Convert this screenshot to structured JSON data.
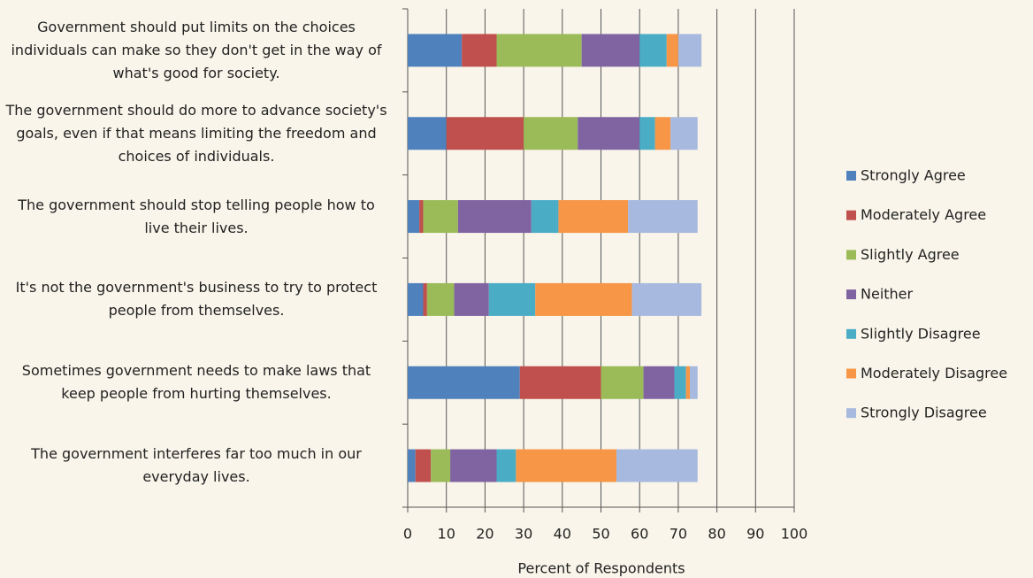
{
  "chart_data": {
    "type": "stacked_bar_horizontal",
    "x_label": "Percent of Respondents",
    "categories": [
      "Government should put limits on the choices individuals can make so they don't get in the way of what's good for society.",
      "The government should do more to advance society's goals, even if that means limiting the freedom and choices of individuals.",
      "The government should stop telling people how to live their lives.",
      "It's not the government's business to try to protect people from themselves.",
      "Sometimes government needs to make laws that keep people from hurting themselves.",
      "The government interferes far too much in our everyday lives."
    ],
    "series": [
      {
        "name": "Strongly Agree",
        "color": "#4f81bd",
        "values": [
          14,
          10,
          3,
          4,
          29,
          2
        ]
      },
      {
        "name": "Moderately Agree",
        "color": "#c0504d",
        "values": [
          9,
          20,
          1,
          1,
          21,
          4
        ]
      },
      {
        "name": "Slightly Agree",
        "color": "#9bbb59",
        "values": [
          22,
          14,
          9,
          7,
          11,
          5
        ]
      },
      {
        "name": "Neither",
        "color": "#8064a2",
        "values": [
          15,
          16,
          19,
          9,
          8,
          12
        ]
      },
      {
        "name": "Slightly Disagree",
        "color": "#4bacc6",
        "values": [
          7,
          4,
          7,
          12,
          3,
          5
        ]
      },
      {
        "name": "Moderately Disagree",
        "color": "#f79646",
        "values": [
          3,
          4,
          18,
          25,
          1,
          26
        ]
      },
      {
        "name": "Strongly Disagree",
        "color": "#a7b9de",
        "values": [
          6,
          7,
          18,
          18,
          2,
          21
        ]
      }
    ],
    "xlim": [
      0,
      100
    ],
    "xticks": [
      0,
      10,
      20,
      30,
      40,
      50,
      60,
      70,
      80,
      90,
      100
    ],
    "grid": true,
    "legend": "right"
  }
}
